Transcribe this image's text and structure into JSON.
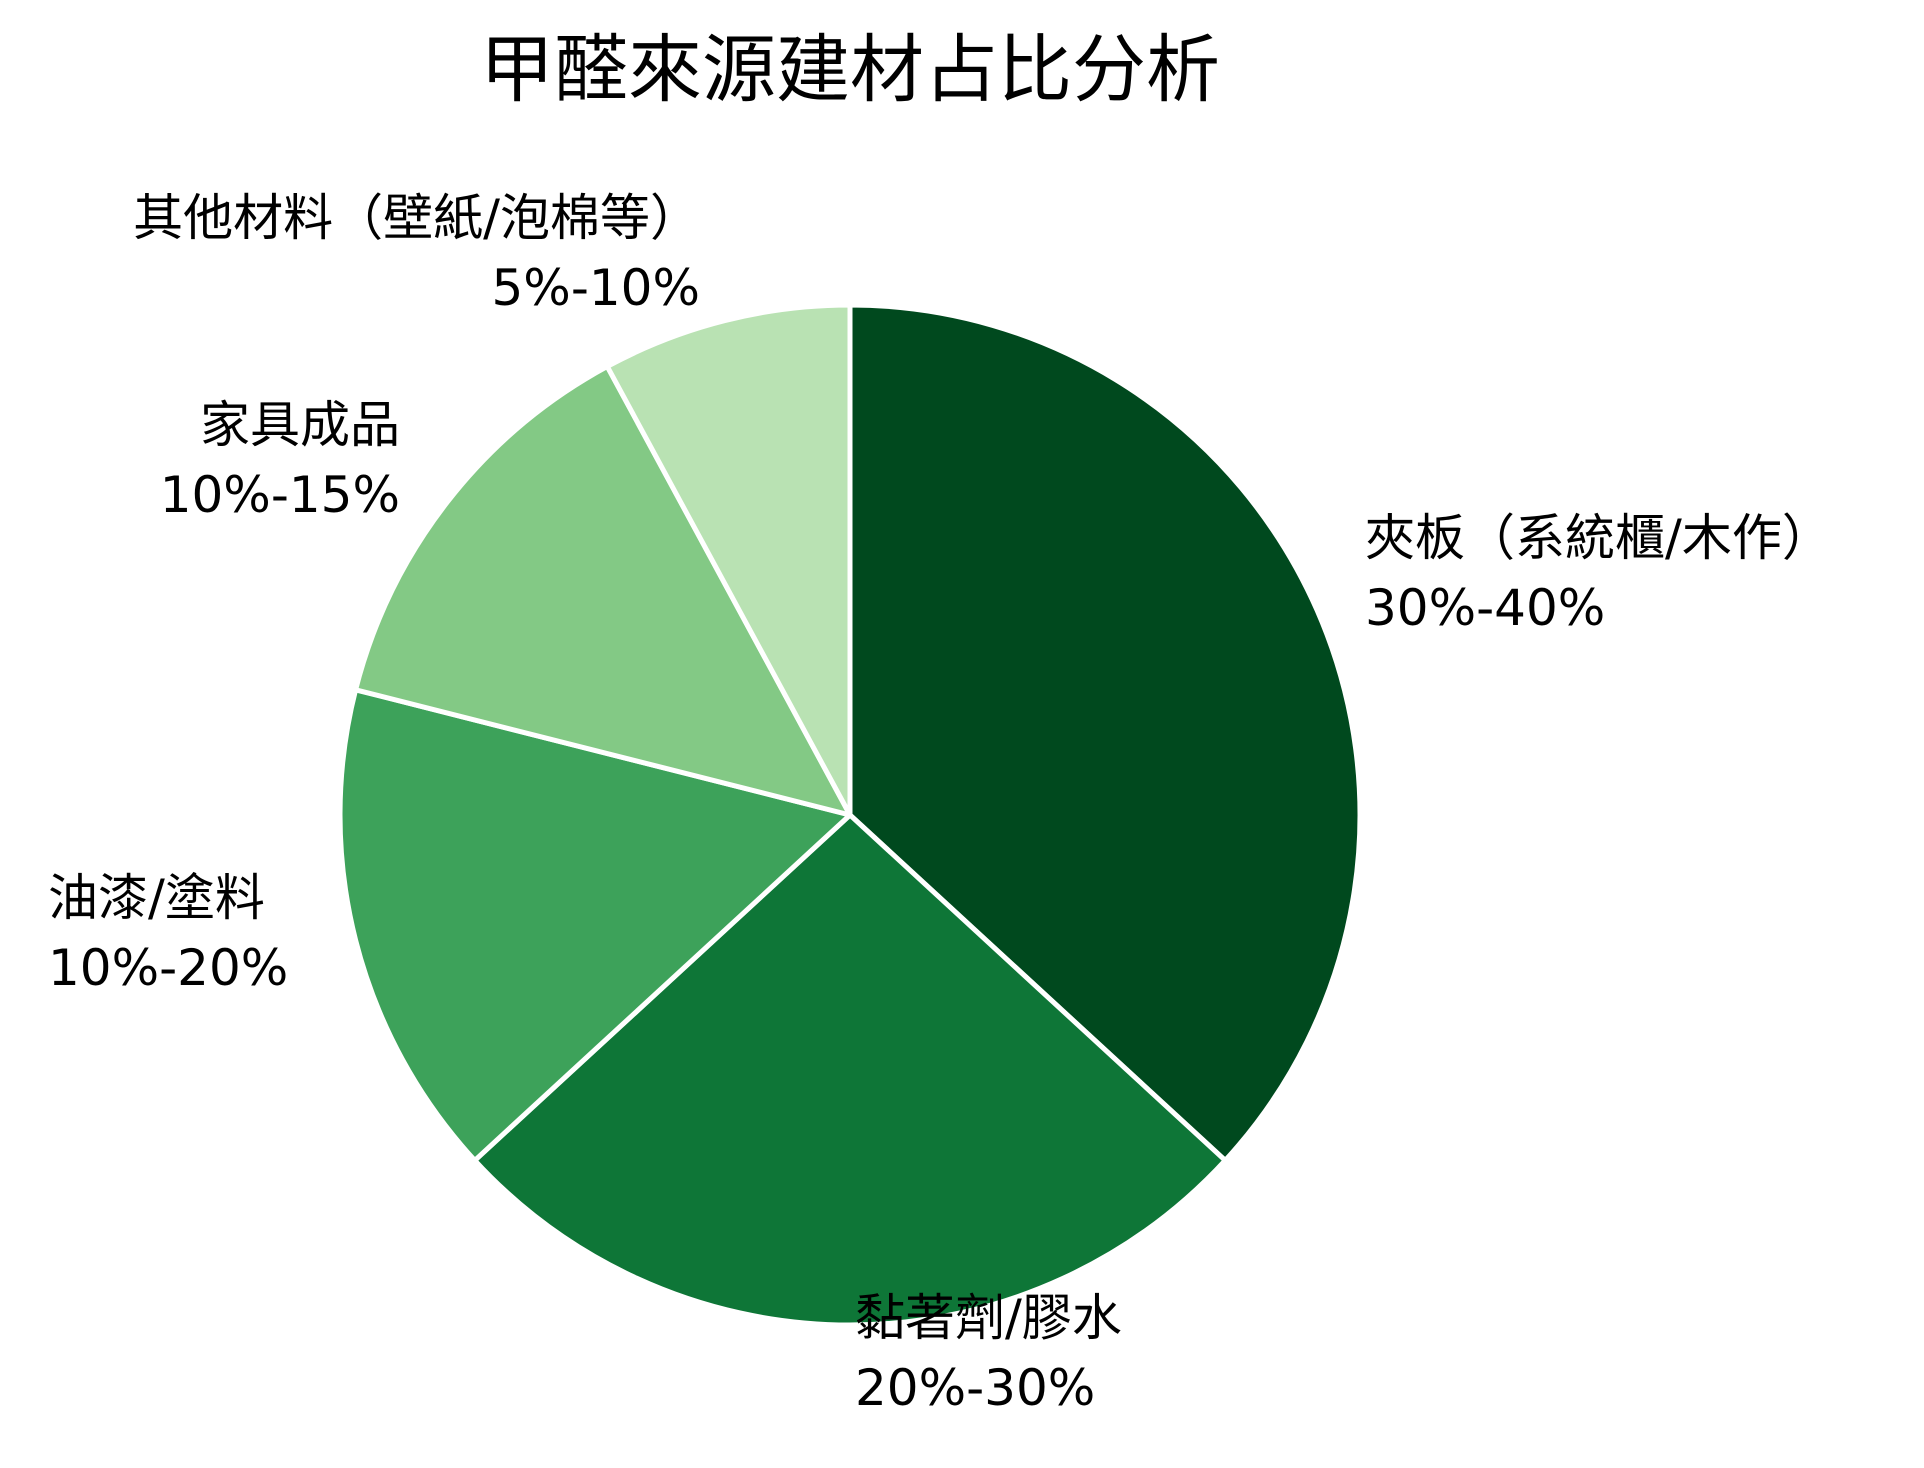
{
  "chart_data": {
    "type": "pie",
    "title": "甲醛來源建材占比分析",
    "start_angle_deg": 90,
    "direction": "clockwise",
    "slices": [
      {
        "label": "夾板（系統櫃/木作）",
        "range_text": "30%-40%",
        "value": 35,
        "color": "#00491e",
        "label_side": "right"
      },
      {
        "label": "黏著劑/膠水",
        "range_text": "20%-30%",
        "value": 25,
        "color": "#0e7637",
        "label_side": "bottom"
      },
      {
        "label": "油漆/塗料",
        "range_text": "10%-20%",
        "value": 15,
        "color": "#3da25a",
        "label_side": "left"
      },
      {
        "label": "家具成品",
        "range_text": "10%-15%",
        "value": 12.5,
        "color": "#83c985",
        "label_side": "left"
      },
      {
        "label": "其他材料（壁紙/泡棉等）",
        "range_text": "5%-10%",
        "value": 7.5,
        "color": "#b9e2b3",
        "label_side": "top-left"
      }
    ]
  }
}
